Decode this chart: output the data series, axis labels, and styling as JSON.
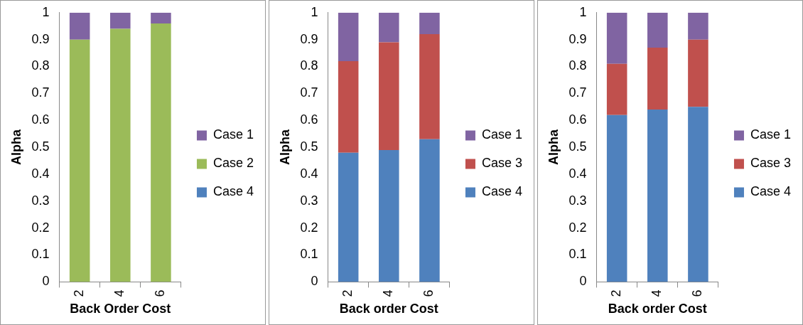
{
  "chart_data": [
    {
      "type": "bar",
      "xlabel": "Back Order Cost",
      "ylabel": "Alpha",
      "categories": [
        "2",
        "4",
        "6"
      ],
      "stacked": true,
      "legend": "right",
      "ylim": [
        0,
        1
      ],
      "yticks": [
        0,
        0.1,
        0.2,
        0.3,
        0.4,
        0.5,
        0.6,
        0.7,
        0.8,
        0.9,
        1
      ],
      "series": [
        {
          "name": "Case 4",
          "color": "#4f81bd",
          "values": [
            0,
            0,
            0
          ]
        },
        {
          "name": "Case 2",
          "color": "#9bbb59",
          "values": [
            0.9,
            0.94,
            0.96
          ]
        },
        {
          "name": "Case 1",
          "color": "#8064a2",
          "values": [
            0.1,
            0.06,
            0.04
          ]
        }
      ]
    },
    {
      "type": "bar",
      "xlabel": "Back order Cost",
      "ylabel": "Alpha",
      "categories": [
        "2",
        "4",
        "6"
      ],
      "stacked": true,
      "legend": "right",
      "ylim": [
        0,
        1
      ],
      "yticks": [
        0,
        0.1,
        0.2,
        0.3,
        0.4,
        0.5,
        0.6,
        0.7,
        0.8,
        0.9,
        1
      ],
      "series": [
        {
          "name": "Case 4",
          "color": "#4f81bd",
          "values": [
            0.48,
            0.49,
            0.53
          ]
        },
        {
          "name": "Case 3",
          "color": "#c0504d",
          "values": [
            0.34,
            0.4,
            0.39
          ]
        },
        {
          "name": "Case 1",
          "color": "#8064a2",
          "values": [
            0.18,
            0.11,
            0.08
          ]
        }
      ]
    },
    {
      "type": "bar",
      "xlabel": "Back order Cost",
      "ylabel": "Alpha",
      "categories": [
        "2",
        "4",
        "6"
      ],
      "stacked": true,
      "legend": "right",
      "ylim": [
        0,
        1
      ],
      "yticks": [
        0,
        0.1,
        0.2,
        0.3,
        0.4,
        0.5,
        0.6,
        0.7,
        0.8,
        0.9,
        1
      ],
      "series": [
        {
          "name": "Case 4",
          "color": "#4f81bd",
          "values": [
            0.62,
            0.64,
            0.65
          ]
        },
        {
          "name": "Case 3",
          "color": "#c0504d",
          "values": [
            0.19,
            0.23,
            0.25
          ]
        },
        {
          "name": "Case 1",
          "color": "#8064a2",
          "values": [
            0.19,
            0.13,
            0.1
          ]
        }
      ]
    }
  ]
}
